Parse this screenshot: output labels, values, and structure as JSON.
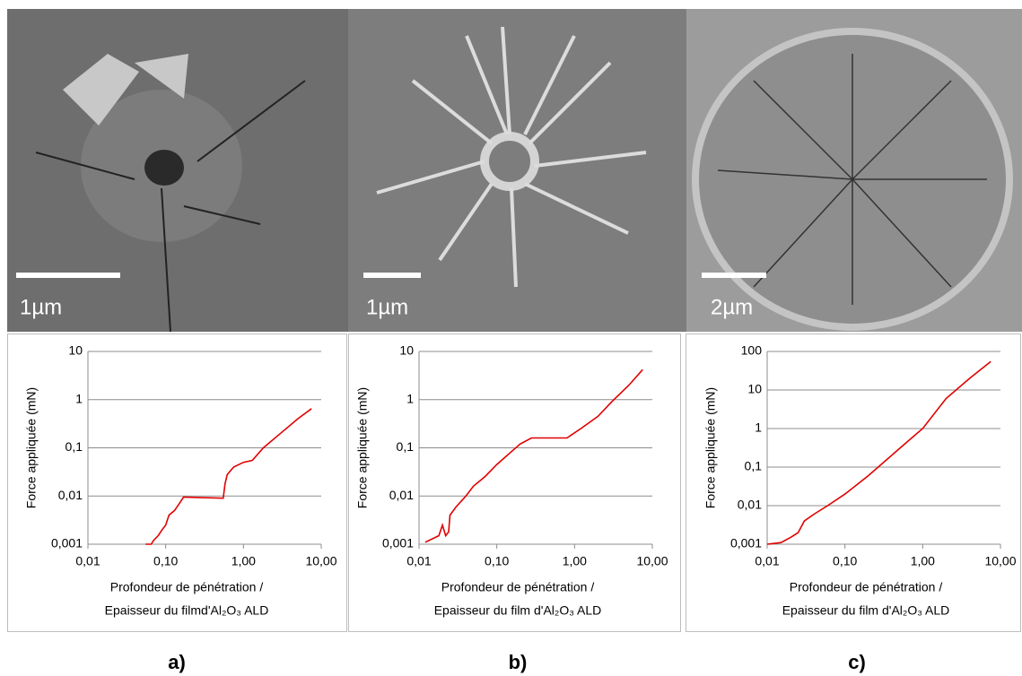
{
  "panels": [
    {
      "label": "a)",
      "scale_label": "1µm"
    },
    {
      "label": "b)",
      "scale_label": "1µm"
    },
    {
      "label": "c)",
      "scale_label": "2µm"
    }
  ],
  "chart_data": [
    {
      "type": "line",
      "color": "#e00000",
      "log_x": true,
      "log_y": true,
      "grid": true,
      "y_label": "Force appliquée (mN)",
      "x_label": [
        "Profondeur de pénétration /",
        "Epaisseur du filmd'Al₂O₃ ALD"
      ],
      "xlim": [
        0.01,
        10
      ],
      "ylim": [
        0.001,
        10
      ],
      "xticks": [
        {
          "value": 0.01,
          "label": "0,01"
        },
        {
          "value": 0.1,
          "label": "0,10"
        },
        {
          "value": 1,
          "label": "1,00"
        },
        {
          "value": 10,
          "label": "10,00"
        }
      ],
      "yticks": [
        {
          "value": 0.001,
          "label": "0,001"
        },
        {
          "value": 0.01,
          "label": "0,01"
        },
        {
          "value": 0.1,
          "label": "0,1"
        },
        1,
        10
      ],
      "x": [
        0.055,
        0.065,
        0.07,
        0.08,
        0.09,
        0.1,
        0.11,
        0.13,
        0.15,
        0.17,
        0.55,
        0.58,
        0.62,
        0.75,
        1.0,
        1.3,
        1.8,
        3,
        5,
        7.5
      ],
      "y": [
        0.001,
        0.001,
        0.0012,
        0.0015,
        0.002,
        0.0025,
        0.004,
        0.005,
        0.007,
        0.0095,
        0.009,
        0.018,
        0.028,
        0.04,
        0.05,
        0.055,
        0.1,
        0.2,
        0.4,
        0.65
      ]
    },
    {
      "type": "line",
      "color": "#e00000",
      "log_x": true,
      "log_y": true,
      "grid": true,
      "y_label": "Force appliquée (mN)",
      "x_label": [
        "Profondeur de pénétration /",
        "Epaisseur du film d'Al₂O₃ ALD"
      ],
      "xlim": [
        0.01,
        10
      ],
      "ylim": [
        0.001,
        10
      ],
      "xticks": [
        {
          "value": 0.01,
          "label": "0,01"
        },
        {
          "value": 0.1,
          "label": "0,10"
        },
        {
          "value": 1,
          "label": "1,00"
        },
        {
          "value": 10,
          "label": "10,00"
        }
      ],
      "yticks": [
        {
          "value": 0.001,
          "label": "0,001"
        },
        {
          "value": 0.01,
          "label": "0,01"
        },
        {
          "value": 0.1,
          "label": "0,1"
        },
        1,
        10
      ],
      "x": [
        0.012,
        0.018,
        0.02,
        0.022,
        0.024,
        0.025,
        0.03,
        0.04,
        0.05,
        0.07,
        0.1,
        0.15,
        0.2,
        0.28,
        0.8,
        1.2,
        2,
        3,
        5,
        7.5
      ],
      "y": [
        0.0011,
        0.0015,
        0.0025,
        0.0015,
        0.0018,
        0.004,
        0.006,
        0.01,
        0.016,
        0.025,
        0.045,
        0.08,
        0.12,
        0.16,
        0.16,
        0.25,
        0.45,
        0.9,
        2,
        4.2
      ]
    },
    {
      "type": "line",
      "color": "#e00000",
      "log_x": true,
      "log_y": true,
      "grid": true,
      "y_label": "Force appliquée (mN)",
      "x_label": [
        "Profondeur de pénétration /",
        "Epaisseur du film d'Al₂O₃ ALD"
      ],
      "xlim": [
        0.01,
        10
      ],
      "ylim": [
        0.001,
        100
      ],
      "xticks": [
        {
          "value": 0.01,
          "label": "0,01"
        },
        {
          "value": 0.1,
          "label": "0,10"
        },
        {
          "value": 1,
          "label": "1,00"
        },
        {
          "value": 10,
          "label": "10,00"
        }
      ],
      "yticks": [
        {
          "value": 0.001,
          "label": "0,001"
        },
        {
          "value": 0.01,
          "label": "0,01"
        },
        {
          "value": 0.1,
          "label": "0,1"
        },
        1,
        10,
        100
      ],
      "x": [
        0.01,
        0.015,
        0.02,
        0.025,
        0.03,
        0.04,
        0.06,
        0.1,
        0.2,
        0.5,
        1,
        2,
        4,
        7.5
      ],
      "y": [
        0.001,
        0.0011,
        0.0015,
        0.002,
        0.004,
        0.006,
        0.01,
        0.02,
        0.06,
        0.3,
        1,
        6,
        20,
        55
      ]
    }
  ]
}
